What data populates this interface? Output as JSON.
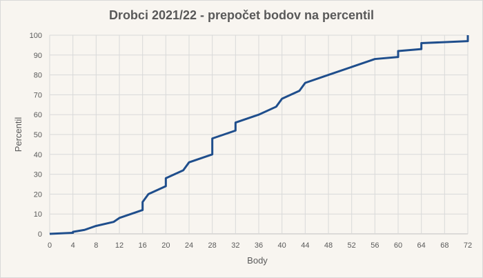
{
  "chart_data": {
    "type": "line",
    "title": "Drobci 2021/22 - prepočet bodov na percentil",
    "xlabel": "Body",
    "ylabel": "Percentil",
    "xlim": [
      0,
      72
    ],
    "ylim": [
      0,
      100
    ],
    "x_ticks": [
      0,
      4,
      8,
      12,
      16,
      20,
      24,
      28,
      32,
      36,
      40,
      44,
      48,
      52,
      56,
      60,
      64,
      68,
      72
    ],
    "y_ticks": [
      0,
      10,
      20,
      30,
      40,
      50,
      60,
      70,
      80,
      90,
      100
    ],
    "grid": true,
    "legend": "none",
    "series": [
      {
        "color": "#1f4e8c",
        "x": [
          0,
          4,
          4,
          6,
          8,
          11,
          12,
          16,
          16,
          17,
          20,
          20,
          23,
          24,
          28,
          28,
          32,
          32,
          36,
          39,
          40,
          43,
          44,
          48,
          52,
          56,
          60,
          60,
          64,
          64,
          72,
          72
        ],
        "y": [
          0,
          0.5,
          1,
          2,
          4,
          6,
          8,
          12,
          16,
          20,
          24,
          28,
          32,
          36,
          40,
          48,
          52,
          56,
          60,
          64,
          68,
          72,
          76,
          80,
          84,
          88,
          89,
          92,
          93,
          96,
          97,
          100
        ]
      }
    ]
  }
}
